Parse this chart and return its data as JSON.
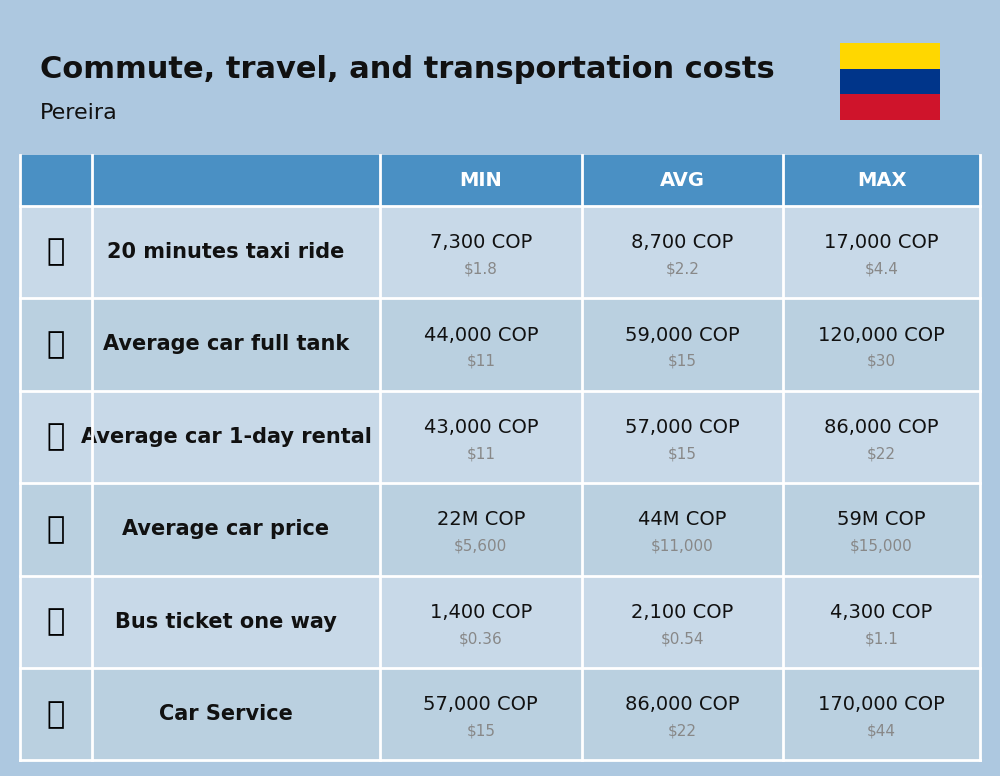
{
  "title": "Commute, travel, and transportation costs",
  "subtitle": "Pereira",
  "background_color": "#adc8e0",
  "header_bg_color": "#4a90c4",
  "header_text_color": "#ffffff",
  "row_bg_color_light": "#c5d9ea",
  "row_bg_color_dark": "#b8cfdf",
  "table_line_color": "#ffffff",
  "columns": [
    "MIN",
    "AVG",
    "MAX"
  ],
  "rows": [
    {
      "label": "20 minutes taxi ride",
      "emoji": "🚕",
      "min_cop": "7,300 COP",
      "min_usd": "$1.8",
      "avg_cop": "8,700 COP",
      "avg_usd": "$2.2",
      "max_cop": "17,000 COP",
      "max_usd": "$4.4"
    },
    {
      "label": "Average car full tank",
      "emoji": "⛽",
      "min_cop": "44,000 COP",
      "min_usd": "$11",
      "avg_cop": "59,000 COP",
      "avg_usd": "$15",
      "max_cop": "120,000 COP",
      "max_usd": "$30"
    },
    {
      "label": "Average car 1-day rental",
      "emoji": "🚙",
      "min_cop": "43,000 COP",
      "min_usd": "$11",
      "avg_cop": "57,000 COP",
      "avg_usd": "$15",
      "max_cop": "86,000 COP",
      "max_usd": "$22"
    },
    {
      "label": "Average car price",
      "emoji": "🚗",
      "min_cop": "22M COP",
      "min_usd": "$5,600",
      "avg_cop": "44M COP",
      "avg_usd": "$11,000",
      "max_cop": "59M COP",
      "max_usd": "$15,000"
    },
    {
      "label": "Bus ticket one way",
      "emoji": "🚌",
      "min_cop": "1,400 COP",
      "min_usd": "$0.36",
      "avg_cop": "2,100 COP",
      "avg_usd": "$0.54",
      "max_cop": "4,300 COP",
      "max_usd": "$1.1"
    },
    {
      "label": "Car Service",
      "emoji": "🚗",
      "min_cop": "57,000 COP",
      "min_usd": "$15",
      "avg_cop": "86,000 COP",
      "avg_usd": "$22",
      "max_cop": "170,000 COP",
      "max_usd": "$44"
    }
  ],
  "flag_colors": [
    "#FFD700",
    "#00358A",
    "#CF142B"
  ],
  "cop_fontsize": 14,
  "usd_fontsize": 11,
  "label_fontsize": 15,
  "header_fontsize": 14
}
